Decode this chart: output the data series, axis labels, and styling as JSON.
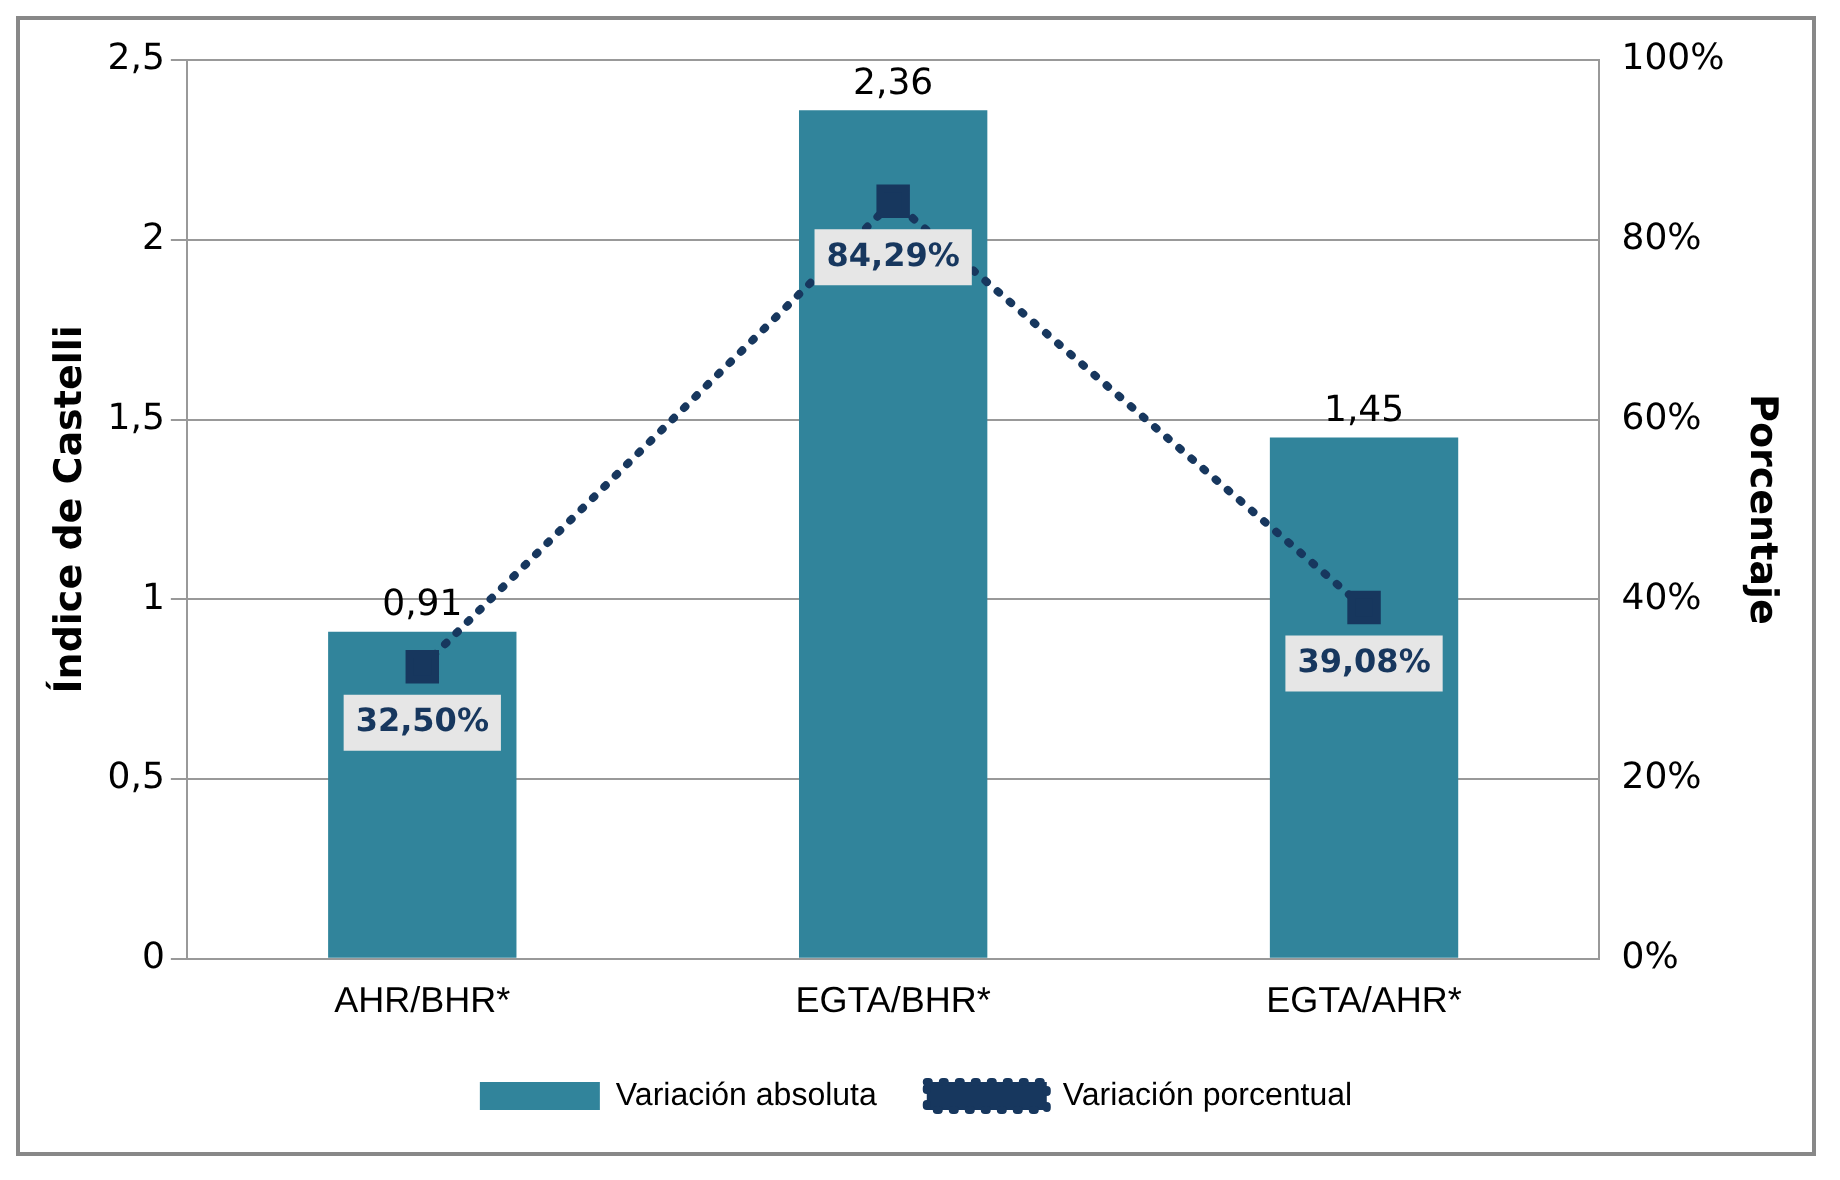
{
  "chart_data": {
    "type": "bar",
    "categories": [
      "AHR/BHR*",
      "EGTA/BHR*",
      "EGTA/AHR*"
    ],
    "ylabel": "Índice de Castelli",
    "y2label": "Porcentaje",
    "series": [
      {
        "name": "Variación absoluta",
        "color": "#31849b",
        "values": [
          0.91,
          2.36,
          1.45
        ],
        "value_labels": [
          "0,91",
          "2,36",
          "1,45"
        ]
      },
      {
        "name": "Variación porcentual",
        "type": "line",
        "axis": "y2",
        "color": "#17375e",
        "values": [
          32.5,
          84.29,
          39.08
        ],
        "value_labels": [
          "32,50%",
          "84,29%",
          "39,08%"
        ],
        "marker": "square",
        "line_style": "dotted"
      }
    ],
    "ylim": [
      0,
      2.5
    ],
    "yticks": [
      {
        "value": 0,
        "label": "0"
      },
      {
        "value": 0.5,
        "label": "0,5"
      },
      {
        "value": 1,
        "label": "1"
      },
      {
        "value": 1.5,
        "label": "1,5"
      },
      {
        "value": 2,
        "label": "2"
      },
      {
        "value": 2.5,
        "label": "2,5"
      }
    ],
    "y2lim": [
      0,
      100
    ],
    "y2ticks": [
      {
        "value": 0,
        "label": "0%"
      },
      {
        "value": 20,
        "label": "20%"
      },
      {
        "value": 40,
        "label": "40%"
      },
      {
        "value": 60,
        "label": "60%"
      },
      {
        "value": 80,
        "label": "80%"
      },
      {
        "value": 100,
        "label": "100%"
      }
    ],
    "grid": "y",
    "legend": "bottom"
  }
}
